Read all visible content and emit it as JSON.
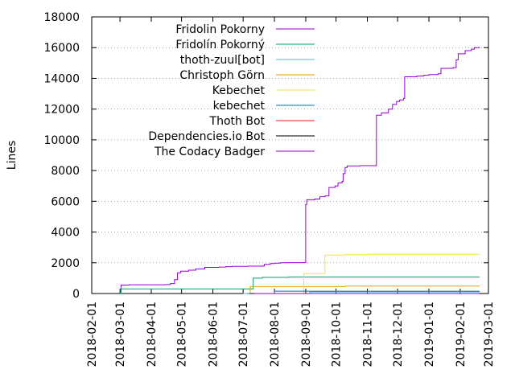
{
  "chart_data": {
    "type": "line",
    "title": "",
    "xlabel": "",
    "ylabel": "Lines",
    "ylim": [
      0,
      18000
    ],
    "xlim": [
      "2018-02-01",
      "2019-03-01"
    ],
    "x_ticks": [
      "2018-02-01",
      "2018-03-01",
      "2018-04-01",
      "2018-05-01",
      "2018-06-01",
      "2018-07-01",
      "2018-08-01",
      "2018-09-01",
      "2018-10-01",
      "2018-11-01",
      "2018-12-01",
      "2019-01-01",
      "2019-02-01",
      "2019-03-01"
    ],
    "y_ticks": [
      0,
      2000,
      4000,
      6000,
      8000,
      10000,
      12000,
      14000,
      16000,
      18000
    ],
    "y_tick_labels": [
      "0",
      "2000",
      "4000",
      "6000",
      "8000",
      "10000",
      "12000",
      "14000",
      "16000",
      "18000"
    ],
    "grid": true,
    "legend_position": "top-right",
    "series": [
      {
        "name": "Fridolin Pokorny",
        "color": "#9400d3",
        "points": [
          [
            "2018-03-01",
            0
          ],
          [
            "2018-03-02",
            550
          ],
          [
            "2018-03-10",
            570
          ],
          [
            "2018-04-15",
            580
          ],
          [
            "2018-04-20",
            650
          ],
          [
            "2018-04-24",
            900
          ],
          [
            "2018-04-27",
            1350
          ],
          [
            "2018-04-30",
            1450
          ],
          [
            "2018-05-08",
            1520
          ],
          [
            "2018-05-15",
            1600
          ],
          [
            "2018-05-24",
            1700
          ],
          [
            "2018-06-07",
            1720
          ],
          [
            "2018-06-14",
            1750
          ],
          [
            "2018-06-20",
            1770
          ],
          [
            "2018-07-06",
            1780
          ],
          [
            "2018-07-20",
            1790
          ],
          [
            "2018-07-22",
            1900
          ],
          [
            "2018-07-28",
            1950
          ],
          [
            "2018-08-01",
            1980
          ],
          [
            "2018-08-07",
            2000
          ],
          [
            "2018-08-15",
            2010
          ],
          [
            "2018-08-31",
            2020
          ],
          [
            "2018-09-01",
            5800
          ],
          [
            "2018-09-02",
            6100
          ],
          [
            "2018-09-10",
            6150
          ],
          [
            "2018-09-15",
            6300
          ],
          [
            "2018-09-20",
            6350
          ],
          [
            "2018-09-24",
            6900
          ],
          [
            "2018-09-30",
            7000
          ],
          [
            "2018-10-03",
            7200
          ],
          [
            "2018-10-07",
            7300
          ],
          [
            "2018-10-08",
            7800
          ],
          [
            "2018-10-10",
            8200
          ],
          [
            "2018-10-12",
            8300
          ],
          [
            "2018-10-25",
            8320
          ],
          [
            "2018-11-10",
            11600
          ],
          [
            "2018-11-15",
            11750
          ],
          [
            "2018-11-22",
            12000
          ],
          [
            "2018-11-26",
            12300
          ],
          [
            "2018-11-30",
            12500
          ],
          [
            "2018-12-03",
            12600
          ],
          [
            "2018-12-07",
            12700
          ],
          [
            "2018-12-08",
            14100
          ],
          [
            "2018-12-20",
            14150
          ],
          [
            "2018-12-27",
            14200
          ],
          [
            "2019-01-01",
            14250
          ],
          [
            "2019-01-10",
            14300
          ],
          [
            "2019-01-13",
            14650
          ],
          [
            "2019-01-25",
            14700
          ],
          [
            "2019-01-28",
            15200
          ],
          [
            "2019-01-30",
            15600
          ],
          [
            "2019-02-06",
            15800
          ],
          [
            "2019-02-12",
            15900
          ],
          [
            "2019-02-15",
            16000
          ],
          [
            "2019-02-20",
            16050
          ]
        ]
      },
      {
        "name": "Fridolín Pokorný",
        "color": "#009e73",
        "points": [
          [
            "2018-03-01",
            0
          ],
          [
            "2018-03-02",
            300
          ],
          [
            "2018-07-10",
            300
          ],
          [
            "2018-07-11",
            1000
          ],
          [
            "2018-07-20",
            1050
          ],
          [
            "2018-08-15",
            1080
          ],
          [
            "2019-02-20",
            1100
          ]
        ]
      },
      {
        "name": "thoth-zuul[bot]",
        "color": "#56b4e9",
        "points": [
          [
            "2018-07-01",
            0
          ],
          [
            "2018-09-05",
            100
          ],
          [
            "2019-02-20",
            120
          ]
        ]
      },
      {
        "name": "Christoph Görn",
        "color": "#e69f00",
        "points": [
          [
            "2018-07-05",
            0
          ],
          [
            "2018-07-08",
            450
          ],
          [
            "2018-10-10",
            480
          ],
          [
            "2019-02-20",
            500
          ]
        ]
      },
      {
        "name": "Kebechet",
        "color": "#f0e442",
        "points": [
          [
            "2018-08-28",
            0
          ],
          [
            "2018-08-30",
            1300
          ],
          [
            "2018-09-15",
            1300
          ],
          [
            "2018-09-20",
            2500
          ],
          [
            "2018-10-10",
            2520
          ],
          [
            "2018-11-01",
            2550
          ],
          [
            "2019-02-20",
            2560
          ]
        ]
      },
      {
        "name": "kebechet",
        "color": "#0072b2",
        "points": [
          [
            "2018-07-05",
            0
          ],
          [
            "2018-08-01",
            150
          ],
          [
            "2019-02-20",
            160
          ]
        ]
      },
      {
        "name": "Thoth Bot",
        "color": "#e51e10",
        "points": [
          [
            "2018-09-05",
            0
          ],
          [
            "2019-02-20",
            30
          ]
        ]
      },
      {
        "name": "Dependencies.io Bot",
        "color": "#000000",
        "points": [
          [
            "2018-07-08",
            0
          ],
          [
            "2019-02-20",
            20
          ]
        ]
      },
      {
        "name": "The Codacy Badger",
        "color": "#9400d3",
        "points": [
          [
            "2018-07-12",
            0
          ],
          [
            "2019-02-20",
            10
          ]
        ]
      }
    ]
  }
}
